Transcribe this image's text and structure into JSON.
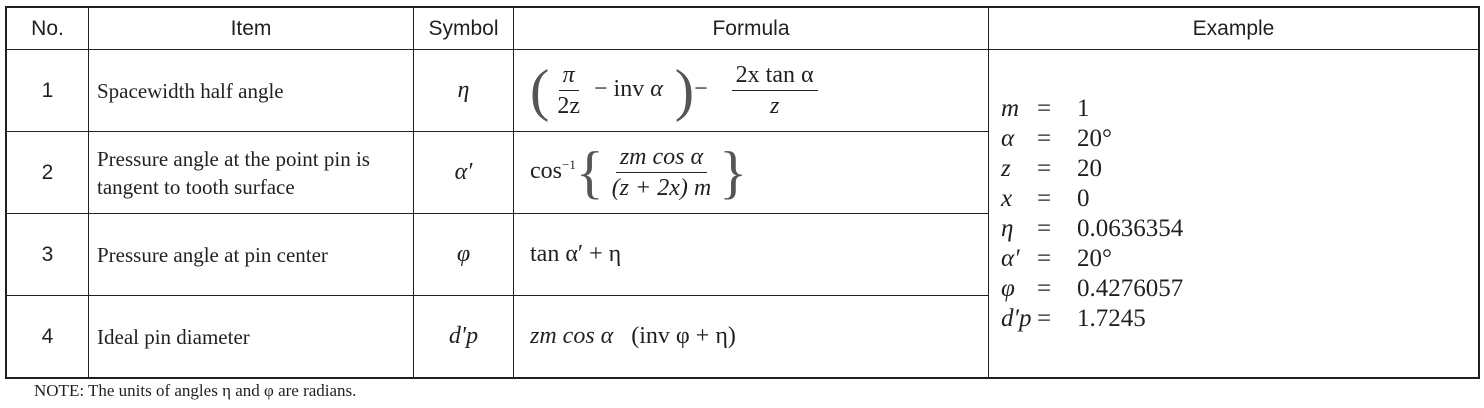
{
  "headers": [
    "No.",
    "Item",
    "Symbol",
    "Formula",
    "Example"
  ],
  "rows": [
    {
      "no": "1",
      "item": "Spacewidth half angle",
      "symbol": "η",
      "formula": {
        "pi": "π",
        "two_z": "2z",
        "minus_inv": "− inv",
        "alpha": "α",
        "minus": "−",
        "num": "2x tan α",
        "den": "z"
      }
    },
    {
      "no": "2",
      "item": "Pressure angle at the point pin is tangent to tooth surface",
      "symbol": "α′",
      "formula": {
        "cos": "cos",
        "exp": "−1",
        "num": "zm cos α",
        "den": "(z + 2x) m"
      }
    },
    {
      "no": "3",
      "item": "Pressure angle at pin center",
      "symbol": "φ",
      "formula": {
        "text": "tan α′ + η"
      }
    },
    {
      "no": "4",
      "item": "Ideal pin diameter",
      "symbol": "d′p",
      "formula": {
        "pre": "zm cos α",
        "paren": "(inv φ + η)"
      }
    }
  ],
  "example": [
    {
      "k": "m",
      "v": "1"
    },
    {
      "k": "α",
      "v": "20°"
    },
    {
      "k": "z",
      "v": "20"
    },
    {
      "k": "x",
      "v": "0"
    },
    {
      "k": "η",
      "v": "0.0636354"
    },
    {
      "k": "α′",
      "v": "20°"
    },
    {
      "k": "φ",
      "v": "0.4276057"
    },
    {
      "k": "d′p",
      "v": "1.7245"
    }
  ],
  "equals": "=",
  "note": "NOTE: The units of angles η and φ are  radians."
}
